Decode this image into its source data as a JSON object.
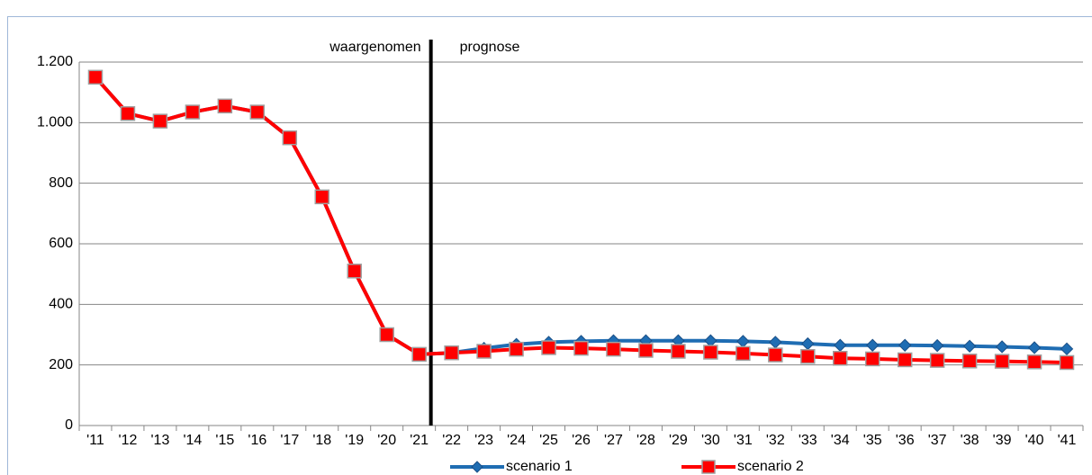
{
  "chart_data": {
    "type": "line",
    "annotations": [
      "waargenomen",
      "prognose"
    ],
    "categories": [
      "'11",
      "'12",
      "'13",
      "'14",
      "'15",
      "'16",
      "'17",
      "'18",
      "'19",
      "'20",
      "'21",
      "'22",
      "'23",
      "'24",
      "'25",
      "'26",
      "'27",
      "'28",
      "'29",
      "'30",
      "'31",
      "'32",
      "'33",
      "'34",
      "'35",
      "'36",
      "'37",
      "'38",
      "'39",
      "'40",
      "'41"
    ],
    "series": [
      {
        "name": "scenario 1",
        "color": "#1f6db3",
        "marker": "diamond",
        "values": [
          1150,
          1030,
          1005,
          1035,
          1055,
          1035,
          950,
          755,
          510,
          300,
          235,
          240,
          255,
          268,
          275,
          278,
          280,
          280,
          280,
          280,
          278,
          275,
          270,
          265,
          265,
          265,
          264,
          262,
          260,
          257,
          253
        ]
      },
      {
        "name": "scenario 2",
        "color": "#ff0000",
        "marker": "square",
        "values": [
          1150,
          1030,
          1005,
          1035,
          1055,
          1035,
          950,
          755,
          510,
          300,
          235,
          240,
          245,
          252,
          257,
          255,
          252,
          248,
          245,
          242,
          238,
          233,
          228,
          222,
          220,
          217,
          215,
          213,
          212,
          210,
          208
        ]
      }
    ],
    "ylim": [
      0,
      1200
    ],
    "yticks": [
      0,
      200,
      400,
      600,
      800,
      {
        "value": 1000,
        "label": "1.000"
      },
      {
        "value": 1200,
        "label": "1.200"
      }
    ],
    "grid": true
  }
}
